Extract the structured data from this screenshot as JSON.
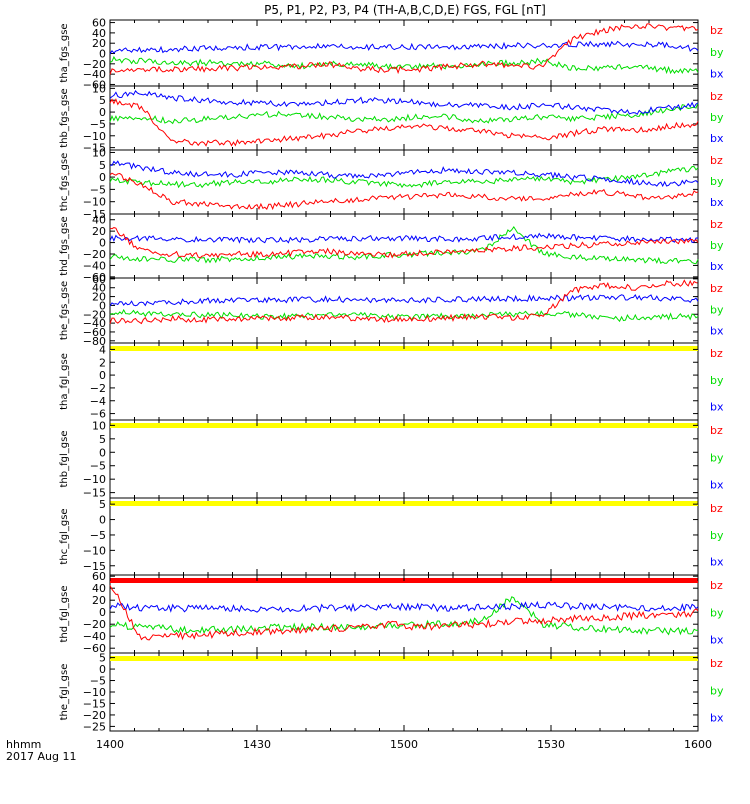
{
  "page_title": "P5, P1, P2, P3, P4 (TH-A,B,C,D,E) FGS, FGL [nT]",
  "x_axis": {
    "ticks": [
      "1400",
      "1430",
      "1500",
      "1530",
      "1600"
    ],
    "time_label": "hhmm",
    "date_label": "2017 Aug 11"
  },
  "colors": {
    "bx": "#0000ff",
    "by": "#00dd00",
    "bz": "#ff0000",
    "yellow": "#ffff00",
    "red": "#ff0000"
  },
  "chart_data": [
    {
      "type": "line",
      "ylabel": "tha_fgs_gse",
      "ylim": [
        -63,
        65
      ],
      "ticks": [
        "60",
        "40",
        "20",
        "0",
        "−20",
        "−40",
        "−60"
      ],
      "tick_values": [
        60,
        40,
        20,
        0,
        -20,
        -40,
        -60
      ],
      "legend": [
        "bz",
        "by",
        "bx"
      ],
      "has_data": true,
      "series": [
        {
          "name": "bx",
          "values": [
            5,
            6,
            8,
            10,
            12,
            12,
            13,
            14,
            13,
            12,
            13,
            13,
            14,
            15,
            16,
            17,
            18,
            18,
            16,
            8
          ]
        },
        {
          "name": "by",
          "values": [
            -12,
            -14,
            -18,
            -18,
            -18,
            -20,
            -25,
            -20,
            -22,
            -25,
            -25,
            -24,
            -20,
            -18,
            -15,
            -30,
            -28,
            -25,
            -32,
            -35
          ]
        },
        {
          "name": "bz",
          "values": [
            -35,
            -32,
            -30,
            -30,
            -28,
            -28,
            -25,
            -20,
            -30,
            -32,
            -30,
            -25,
            -20,
            -25,
            -25,
            30,
            45,
            55,
            48,
            48
          ]
        }
      ]
    },
    {
      "type": "line",
      "ylabel": "thb_fgs_gse",
      "ylim": [
        -16,
        11
      ],
      "ticks": [
        "10",
        "5",
        "0",
        "−5",
        "−10",
        "−15"
      ],
      "tick_values": [
        10,
        5,
        0,
        -5,
        -10,
        -15
      ],
      "legend": [
        "bz",
        "by",
        "bx"
      ],
      "has_data": true,
      "series": [
        {
          "name": "bx",
          "values": [
            7,
            8,
            6,
            5,
            4,
            4,
            3,
            4,
            5,
            5,
            4,
            3,
            3,
            2,
            3,
            2,
            1,
            0,
            2,
            3
          ]
        },
        {
          "name": "by",
          "values": [
            -3,
            -2,
            -4,
            -3,
            -2,
            -1,
            -1,
            -2,
            -3,
            -3,
            -2,
            -2,
            -4,
            -3,
            -2,
            -3,
            -2,
            -1,
            1,
            3
          ]
        },
        {
          "name": "bz",
          "values": [
            5,
            2,
            -12,
            -13,
            -13,
            -12,
            -11,
            -10,
            -8,
            -7,
            -6,
            -7,
            -8,
            -10,
            -11,
            -9,
            -7,
            -8,
            -6,
            -5
          ]
        }
      ]
    },
    {
      "type": "line",
      "ylabel": "thc_fgs_gse",
      "ylim": [
        -15,
        11
      ],
      "ticks": [
        "10",
        "5",
        "0",
        "−5",
        "−10",
        "−15"
      ],
      "tick_values": [
        10,
        5,
        0,
        -5,
        -10,
        -15
      ],
      "legend": [
        "bz",
        "by",
        "bx"
      ],
      "has_data": true,
      "series": [
        {
          "name": "bx",
          "values": [
            6,
            4,
            2,
            1,
            1,
            2,
            2,
            1,
            0,
            1,
            2,
            3,
            2,
            2,
            1,
            0,
            -1,
            -2,
            -3,
            -2
          ]
        },
        {
          "name": "by",
          "values": [
            -1,
            -2,
            -3,
            -3,
            -2,
            -2,
            -1,
            -1,
            -2,
            -3,
            -3,
            -2,
            -2,
            -1,
            -1,
            -2,
            -1,
            0,
            2,
            4
          ]
        },
        {
          "name": "bz",
          "values": [
            2,
            -3,
            -10,
            -11,
            -12,
            -12,
            -11,
            -10,
            -9,
            -8,
            -8,
            -7,
            -8,
            -9,
            -9,
            -7,
            -6,
            -8,
            -8,
            -6
          ]
        }
      ]
    },
    {
      "type": "line",
      "ylabel": "thd_fgs_gse",
      "ylim": [
        -62,
        50
      ],
      "ticks": [
        "40",
        "20",
        "0",
        "−20",
        "−40",
        "−60"
      ],
      "tick_values": [
        40,
        20,
        0,
        -20,
        -40,
        -60
      ],
      "legend": [
        "bz",
        "by",
        "bx"
      ],
      "has_data": true,
      "series": [
        {
          "name": "bx",
          "values": [
            8,
            7,
            6,
            5,
            5,
            4,
            5,
            6,
            7,
            8,
            7,
            6,
            8,
            10,
            12,
            9,
            8,
            6,
            5,
            4
          ]
        },
        {
          "name": "by",
          "values": [
            -25,
            -28,
            -30,
            -30,
            -28,
            -26,
            -25,
            -24,
            -25,
            -22,
            -20,
            -18,
            -15,
            25,
            -20,
            -25,
            -28,
            -30,
            -32,
            -34
          ]
        },
        {
          "name": "bz",
          "values": [
            30,
            -15,
            -20,
            -22,
            -20,
            -20,
            -18,
            -15,
            -20,
            -22,
            -18,
            -15,
            -12,
            -10,
            -8,
            -5,
            -3,
            0,
            2,
            5
          ]
        }
      ]
    },
    {
      "type": "line",
      "ylabel": "the_fgs_gse",
      "ylim": [
        -85,
        62
      ],
      "ticks": [
        "60",
        "40",
        "20",
        "0",
        "−20",
        "−40",
        "−60",
        "−80"
      ],
      "tick_values": [
        60,
        40,
        20,
        0,
        -20,
        -40,
        -60,
        -80
      ],
      "legend": [
        "bz",
        "by",
        "bx"
      ],
      "has_data": true,
      "series": [
        {
          "name": "bx",
          "values": [
            5,
            6,
            8,
            10,
            12,
            12,
            13,
            14,
            13,
            12,
            13,
            13,
            14,
            15,
            16,
            17,
            18,
            18,
            16,
            10
          ]
        },
        {
          "name": "by",
          "values": [
            -15,
            -18,
            -20,
            -22,
            -22,
            -25,
            -25,
            -22,
            -22,
            -25,
            -25,
            -24,
            -22,
            -20,
            -18,
            -20,
            -30,
            -28,
            -25,
            -25
          ]
        },
        {
          "name": "bz",
          "values": [
            -35,
            -35,
            -30,
            -32,
            -30,
            -30,
            -28,
            -25,
            -30,
            -32,
            -30,
            -28,
            -25,
            -28,
            -20,
            35,
            45,
            40,
            50,
            50
          ]
        }
      ]
    },
    {
      "type": "line",
      "ylabel": "tha_fgl_gse",
      "ylim": [
        -7,
        5
      ],
      "ticks": [
        "4",
        "2",
        "0",
        "−2",
        "−4",
        "−6"
      ],
      "tick_values": [
        4,
        2,
        0,
        -2,
        -4,
        -6
      ],
      "legend": [
        "bz",
        "by",
        "bx"
      ],
      "has_data": false,
      "bar": "yellow",
      "series": []
    },
    {
      "type": "line",
      "ylabel": "thb_fgl_gse",
      "ylim": [
        -17,
        12
      ],
      "ticks": [
        "10",
        "5",
        "0",
        "−5",
        "−10",
        "−15"
      ],
      "tick_values": [
        10,
        5,
        0,
        -5,
        -10,
        -15
      ],
      "legend": [
        "bz",
        "by",
        "bx"
      ],
      "has_data": false,
      "bar": "yellow",
      "series": []
    },
    {
      "type": "line",
      "ylabel": "thc_fgl_gse",
      "ylim": [
        -18,
        7
      ],
      "ticks": [
        "5",
        "0",
        "−5",
        "−10",
        "−15"
      ],
      "tick_values": [
        5,
        0,
        -5,
        -10,
        -15
      ],
      "legend": [
        "bz",
        "by",
        "bx"
      ],
      "has_data": false,
      "bar": "yellow",
      "series": []
    },
    {
      "type": "line",
      "ylabel": "thd_fgl_gse",
      "ylim": [
        -68,
        62
      ],
      "ticks": [
        "60",
        "40",
        "20",
        "0",
        "−20",
        "−40",
        "−60"
      ],
      "tick_values": [
        60,
        40,
        20,
        0,
        -20,
        -40,
        -60
      ],
      "legend": [
        "bz",
        "by",
        "bx"
      ],
      "has_data": true,
      "bar": "red",
      "series": [
        {
          "name": "bx",
          "values": [
            10,
            8,
            7,
            6,
            6,
            5,
            6,
            7,
            8,
            9,
            8,
            7,
            8,
            10,
            12,
            10,
            9,
            8,
            7,
            8
          ]
        },
        {
          "name": "by",
          "values": [
            -20,
            -25,
            -28,
            -30,
            -28,
            -25,
            -25,
            -24,
            -25,
            -22,
            -20,
            -18,
            -15,
            25,
            -20,
            -25,
            -28,
            -30,
            -32,
            -32
          ]
        },
        {
          "name": "bz",
          "values": [
            50,
            -45,
            -40,
            -38,
            -35,
            -32,
            -30,
            -28,
            -25,
            -20,
            -25,
            -22,
            -20,
            -15,
            -15,
            -10,
            -10,
            -5,
            -5,
            0
          ]
        }
      ]
    },
    {
      "type": "line",
      "ylabel": "the_fgl_gse",
      "ylim": [
        -27,
        7
      ],
      "ticks": [
        "5",
        "0",
        "−5",
        "−10",
        "−15",
        "−20",
        "−25"
      ],
      "tick_values": [
        5,
        0,
        -5,
        -10,
        -15,
        -20,
        -25
      ],
      "legend": [
        "bz",
        "by",
        "bx"
      ],
      "has_data": false,
      "bar": "yellow",
      "series": []
    }
  ]
}
